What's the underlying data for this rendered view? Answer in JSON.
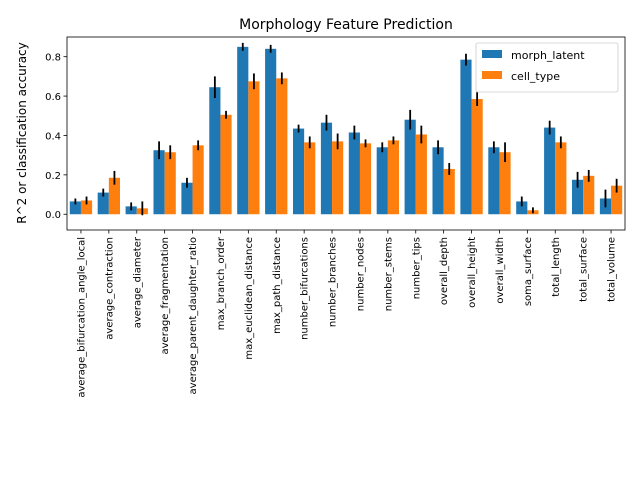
{
  "chart_data": {
    "type": "bar",
    "title": "Morphology Feature Prediction",
    "xlabel": "",
    "ylabel": "R^2 or classification accuracy",
    "ylim": [
      -0.08,
      0.9
    ],
    "yticks": [
      "0.0",
      "0.2",
      "0.4",
      "0.6",
      "0.8"
    ],
    "grid": false,
    "legend_position": "top-right",
    "categories": [
      "average_bifurcation_angle_local",
      "average_contraction",
      "average_diameter",
      "average_fragmentation",
      "average_parent_daughter_ratio",
      "max_branch_order",
      "max_euclidean_distance",
      "max_path_distance",
      "number_bifurcations",
      "number_branches",
      "number_nodes",
      "number_stems",
      "number_tips",
      "overall_depth",
      "overall_height",
      "overall_width",
      "soma_surface",
      "total_length",
      "total_surface",
      "total_volume"
    ],
    "series": [
      {
        "name": "morph_latent",
        "color": "#1f77b4",
        "values": [
          0.065,
          0.11,
          0.04,
          0.325,
          0.16,
          0.645,
          0.85,
          0.84,
          0.435,
          0.465,
          0.415,
          0.34,
          0.48,
          0.34,
          0.785,
          0.34,
          0.065,
          0.44,
          0.175,
          0.08
        ],
        "errors": [
          0.015,
          0.02,
          0.02,
          0.045,
          0.025,
          0.055,
          0.02,
          0.02,
          0.02,
          0.04,
          0.035,
          0.025,
          0.05,
          0.035,
          0.03,
          0.03,
          0.025,
          0.035,
          0.04,
          0.045
        ]
      },
      {
        "name": "cell_type",
        "color": "#ff7f0e",
        "values": [
          0.07,
          0.185,
          0.03,
          0.315,
          0.35,
          0.505,
          0.675,
          0.69,
          0.365,
          0.37,
          0.36,
          0.375,
          0.405,
          0.23,
          0.585,
          0.315,
          0.02,
          0.365,
          0.195,
          0.145
        ],
        "errors": [
          0.02,
          0.035,
          0.035,
          0.035,
          0.025,
          0.02,
          0.04,
          0.03,
          0.03,
          0.04,
          0.02,
          0.02,
          0.045,
          0.03,
          0.035,
          0.05,
          0.015,
          0.03,
          0.03,
          0.035
        ]
      }
    ]
  }
}
